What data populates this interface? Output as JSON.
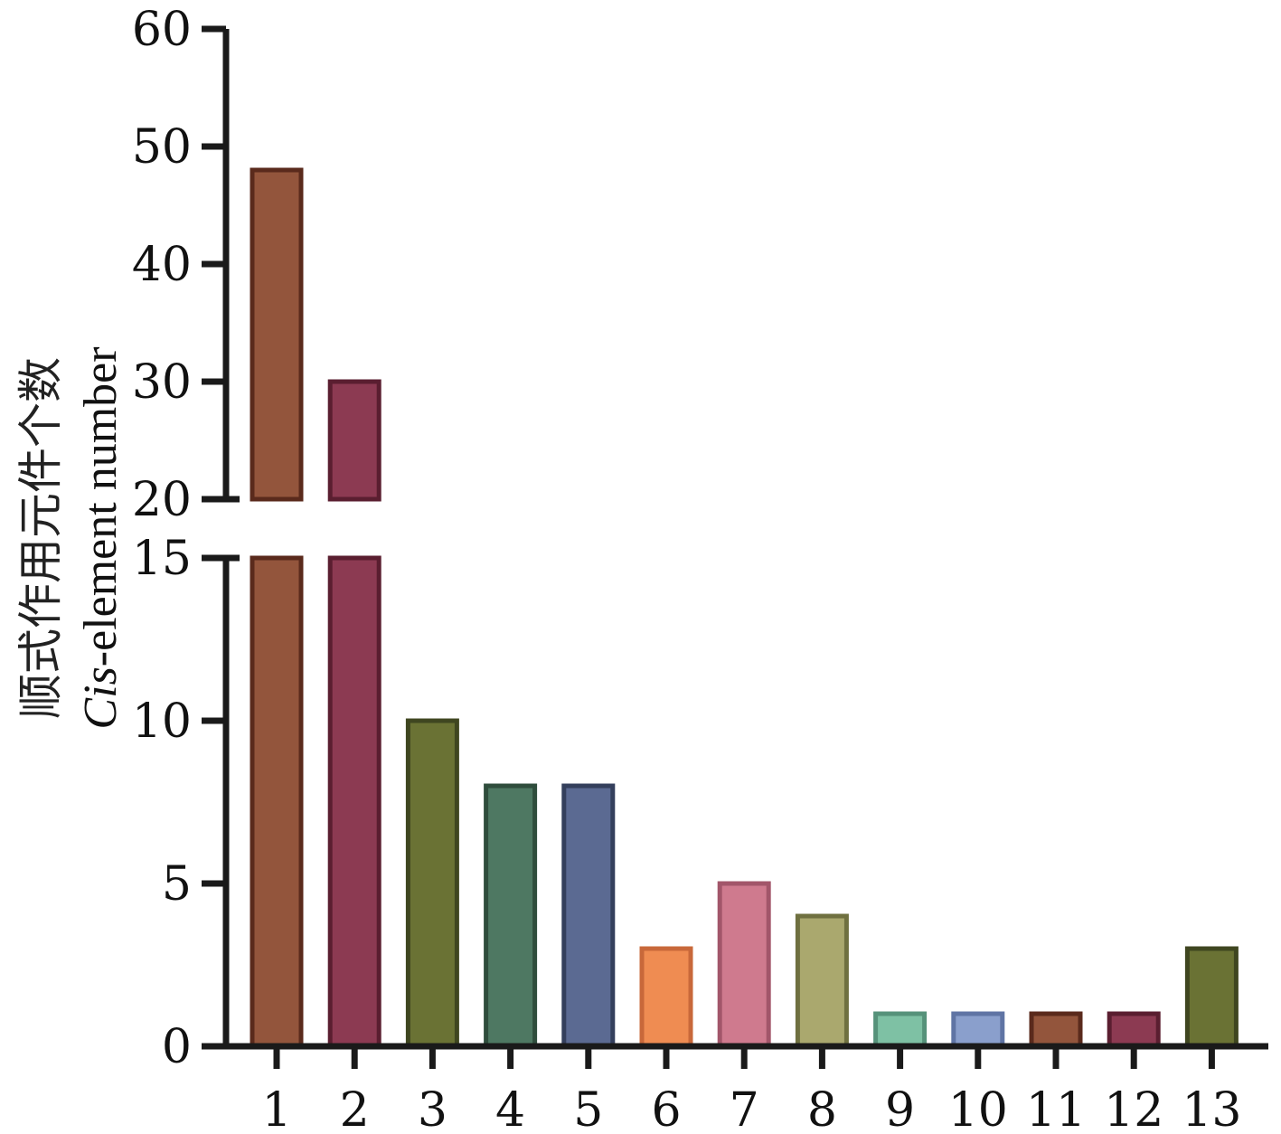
{
  "chart_data": {
    "type": "bar",
    "axis_break": {
      "from": 15,
      "to": 20
    },
    "categories": [
      "1",
      "2",
      "3",
      "4",
      "5",
      "6",
      "7",
      "8",
      "9",
      "10",
      "11",
      "12",
      "13"
    ],
    "values": [
      48,
      30,
      10,
      8,
      8,
      3,
      5,
      4,
      1,
      1,
      1,
      1,
      3
    ],
    "colors": [
      "#93553c",
      "#8c3a52",
      "#6a7234",
      "#4e7862",
      "#5b6a92",
      "#ef8c52",
      "#cf7a8e",
      "#aaa86e",
      "#7ec1a4",
      "#8a9fcc",
      "#93553c",
      "#8c3a52",
      "#6a7234"
    ],
    "border_colors": [
      "#5a2a1c",
      "#5a1e30",
      "#3f4620",
      "#2f4d3c",
      "#343f5c",
      "#c8683a",
      "#a2566a",
      "#6f7040",
      "#56927a",
      "#5f74a4",
      "#5a2a1c",
      "#5a1e30",
      "#3f4620"
    ],
    "ylim": [
      0,
      60
    ],
    "yticks_upper": [
      "20",
      "30",
      "40",
      "50",
      "60"
    ],
    "yticks_lower": [
      "0",
      "5",
      "10",
      "15"
    ],
    "ylabel_cn": "顺式作用元件个数",
    "ylabel_en_italic": "Cis",
    "ylabel_en_rest": "-element number",
    "xlabel": "",
    "grid": false
  }
}
